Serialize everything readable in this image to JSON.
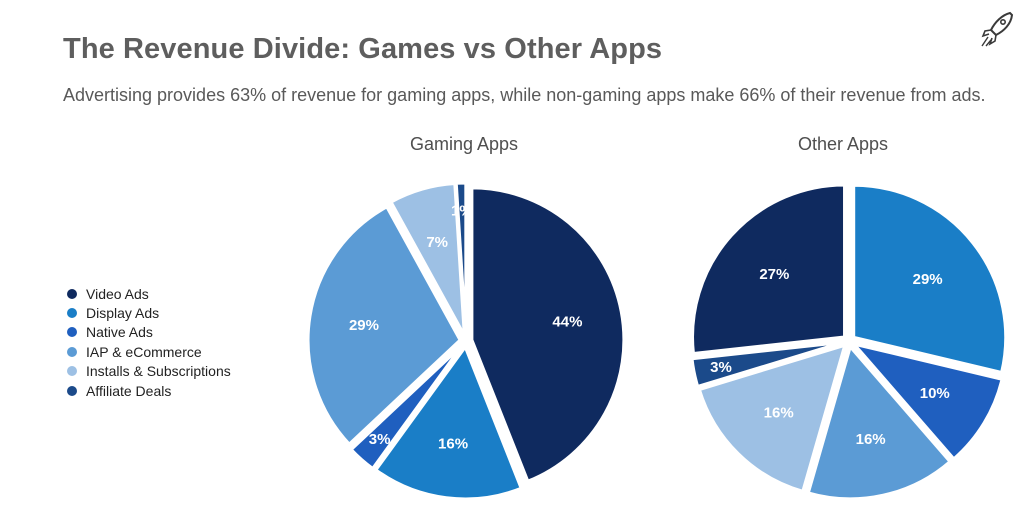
{
  "title": "The Revenue Divide: Games vs Other Apps",
  "subtitle": "Advertising provides 63% of revenue for gaming apps, while non-gaming apps make 66% of their revenue from ads.",
  "logo_icon": "rocket-icon",
  "legend": [
    {
      "label": "Video Ads",
      "color": "#0f2a5f"
    },
    {
      "label": "Display Ads",
      "color": "#1a7ec7"
    },
    {
      "label": "Native Ads",
      "color": "#1f5fbf"
    },
    {
      "label": "IAP & eCommerce",
      "color": "#5b9bd5"
    },
    {
      "label": "Installs & Subscriptions",
      "color": "#9dc0e4"
    },
    {
      "label": "Affiliate Deals",
      "color": "#1b4a8a"
    }
  ],
  "chart_data": [
    {
      "type": "pie",
      "title": "Gaming Apps",
      "slices": [
        {
          "category": "Video Ads",
          "value": 44,
          "label": "44%"
        },
        {
          "category": "Display Ads",
          "value": 16,
          "label": "16%"
        },
        {
          "category": "Native Ads",
          "value": 3,
          "label": "3%"
        },
        {
          "category": "IAP & eCommerce",
          "value": 29,
          "label": "29%"
        },
        {
          "category": "Installs & Subscriptions",
          "value": 7,
          "label": "7%"
        },
        {
          "category": "Affiliate Deals",
          "value": 1,
          "label": "1%"
        }
      ]
    },
    {
      "type": "pie",
      "title": "Other Apps",
      "slices": [
        {
          "category": "Display Ads",
          "value": 29,
          "label": "29%"
        },
        {
          "category": "Native Ads",
          "value": 10,
          "label": "10%"
        },
        {
          "category": "IAP & eCommerce",
          "value": 16,
          "label": "16%"
        },
        {
          "category": "Installs & Subscriptions",
          "value": 16,
          "label": "16%"
        },
        {
          "category": "Affiliate Deals",
          "value": 3,
          "label": "3%"
        },
        {
          "category": "Video Ads",
          "value": 27,
          "label": "27%"
        }
      ]
    }
  ]
}
